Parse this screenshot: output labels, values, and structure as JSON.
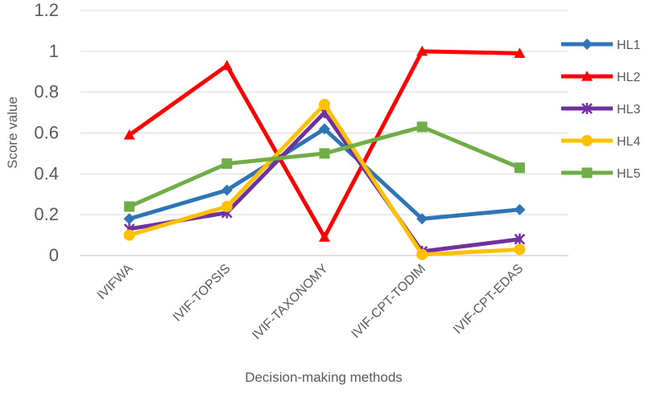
{
  "chart_data": {
    "type": "line",
    "title": "",
    "xlabel": "Decision-making methods",
    "ylabel": "Score value",
    "ylim": [
      0,
      1.2
    ],
    "yticks": [
      "0",
      "0.2",
      "0.4",
      "0.6",
      "0.8",
      "1",
      "1.2"
    ],
    "categories": [
      "IVIFWA",
      "IVIF-TOPSIS",
      "IVIF-TAXONOMY",
      "IVIF-CPT-TODIM",
      "IVIF-CPT-EDAS"
    ],
    "grid": true,
    "legend": "right",
    "series": [
      {
        "name": "HL1",
        "color": "#2e75b6",
        "marker": "diamond",
        "values": [
          0.18,
          0.32,
          0.62,
          0.18,
          0.225
        ]
      },
      {
        "name": "HL2",
        "color": "#ff0000",
        "marker": "triangle",
        "values": [
          0.59,
          0.93,
          0.09,
          1.0,
          0.99
        ]
      },
      {
        "name": "HL3",
        "color": "#7030a0",
        "marker": "star",
        "values": [
          0.13,
          0.21,
          0.7,
          0.02,
          0.08
        ]
      },
      {
        "name": "HL4",
        "color": "#ffc000",
        "marker": "circle",
        "values": [
          0.1,
          0.24,
          0.74,
          0.005,
          0.03
        ]
      },
      {
        "name": "HL5",
        "color": "#70ad47",
        "marker": "square",
        "values": [
          0.24,
          0.45,
          0.5,
          0.63,
          0.43
        ]
      }
    ]
  }
}
